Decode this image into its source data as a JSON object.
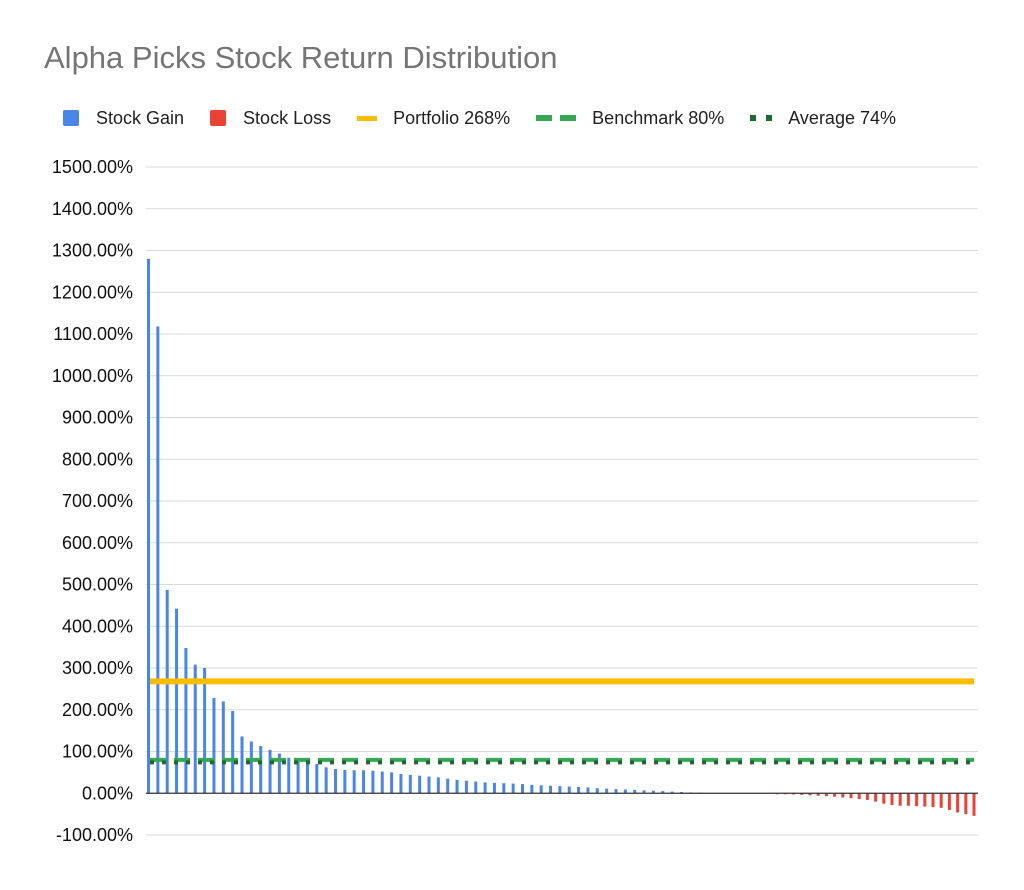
{
  "colors": {
    "gain": "#4a86e8",
    "loss": "#ea4335",
    "portfolio": "#fbbc04",
    "benchmark": "#34a853",
    "average": "#1e6b2e",
    "grid": "#d9d9d9",
    "axis": "#333333"
  },
  "chart_data": {
    "type": "bar",
    "title": "Alpha Picks Stock Return Distribution",
    "xlabel": "",
    "ylabel": "",
    "ylim": [
      -100,
      1500
    ],
    "yticks": [
      "1500.00%",
      "1400.00%",
      "1300.00%",
      "1200.00%",
      "1100.00%",
      "1000.00%",
      "900.00%",
      "800.00%",
      "700.00%",
      "600.00%",
      "500.00%",
      "400.00%",
      "300.00%",
      "200.00%",
      "100.00%",
      "0.00%",
      "-100.00%"
    ],
    "ytick_values": [
      1500,
      1400,
      1300,
      1200,
      1100,
      1000,
      900,
      800,
      700,
      600,
      500,
      400,
      300,
      200,
      100,
      0,
      -100
    ],
    "grid": true,
    "legend_position": "top",
    "legend": [
      {
        "label": "Stock Gain",
        "style": "box",
        "color_key": "gain"
      },
      {
        "label": "Stock Loss",
        "style": "box",
        "color_key": "loss"
      },
      {
        "label": "Portfolio 268%",
        "style": "line",
        "color_key": "portfolio"
      },
      {
        "label": "Benchmark 80%",
        "style": "dash",
        "color_key": "benchmark"
      },
      {
        "label": "Average 74%",
        "style": "dot",
        "color_key": "average"
      }
    ],
    "series": [
      {
        "name": "Stock Gain",
        "type": "bar",
        "values": [
          1280,
          1118,
          487,
          442,
          348,
          308,
          300,
          228,
          220,
          197,
          136,
          124,
          113,
          104,
          95,
          85,
          75,
          72,
          70,
          62,
          58,
          56,
          55,
          55,
          54,
          52,
          50,
          46,
          44,
          42,
          40,
          38,
          35,
          32,
          30,
          28,
          26,
          25,
          24,
          23,
          22,
          20,
          19,
          18,
          17,
          16,
          15,
          14,
          12,
          11,
          10,
          9,
          8,
          7,
          6,
          5,
          4,
          3,
          2,
          1
        ]
      },
      {
        "name": "Stock Loss",
        "type": "bar",
        "values": [
          -1,
          -2,
          -3,
          -4,
          -5,
          -6,
          -7,
          -8,
          -10,
          -12,
          -14,
          -16,
          -20,
          -25,
          -28,
          -30,
          -30,
          -31,
          -32,
          -33,
          -35,
          -40,
          -46,
          -50,
          -54
        ]
      },
      {
        "name": "Portfolio 268%",
        "type": "line",
        "value": 268
      },
      {
        "name": "Benchmark 80%",
        "type": "line",
        "value": 80
      },
      {
        "name": "Average 74%",
        "type": "line",
        "value": 74
      }
    ]
  }
}
